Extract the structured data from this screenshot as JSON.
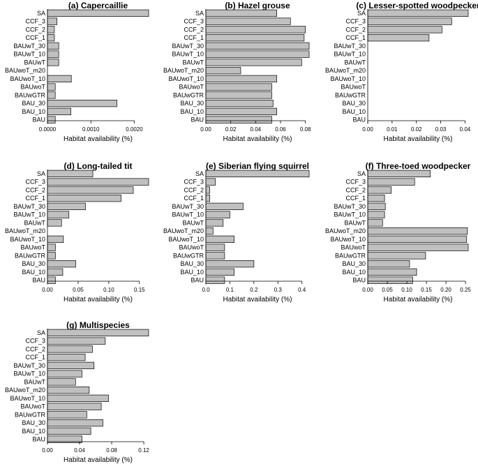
{
  "chart_data": [
    {
      "type": "bar",
      "orientation": "horizontal",
      "panel": "a",
      "title": "(a) Capercaillie",
      "xlabel": "Habitat availability (%)",
      "ylabel": "",
      "categories": [
        "SA",
        "CCF_3",
        "CCF_2",
        "CCF_1",
        "BAUwT_30",
        "BAUwT_10",
        "BAUwT",
        "BAUwoT_m20",
        "BAUwoT_10",
        "BAUwoT",
        "BAUwGTR",
        "BAU_30",
        "BAU_10",
        "BAU"
      ],
      "values": [
        0.00233,
        0.00022,
        0.00016,
        0.00016,
        0.00026,
        0.00026,
        0.00026,
        0.0,
        0.00055,
        0.00018,
        0.00018,
        0.0016,
        0.00054,
        0.00018
      ],
      "xlim": [
        0,
        0.00233
      ],
      "xticks": [
        0,
        0.001,
        0.002
      ],
      "xtick_labels": [
        "0.0000",
        "0.0010",
        "0.0020"
      ]
    },
    {
      "type": "bar",
      "orientation": "horizontal",
      "panel": "b",
      "title": "(b) Hazel grouse",
      "xlabel": "Habitat availability (%)",
      "ylabel": "",
      "categories": [
        "SA",
        "CCF_3",
        "CCF_2",
        "CCF_1",
        "BAUwT_30",
        "BAUwT_10",
        "BAUwT",
        "BAUwoT_m20",
        "BAUwoT_10",
        "BAUwoT",
        "BAUwGTR",
        "BAU_30",
        "BAU_10",
        "BAU"
      ],
      "values": [
        0.057,
        0.068,
        0.08,
        0.079,
        0.083,
        0.083,
        0.077,
        0.028,
        0.057,
        0.053,
        0.053,
        0.054,
        0.057,
        0.053
      ],
      "xlim": [
        0,
        0.083
      ],
      "xticks": [
        0,
        0.02,
        0.04,
        0.06,
        0.08
      ],
      "xtick_labels": [
        "0.00",
        "0.02",
        "0.04",
        "0.06",
        "0.08"
      ]
    },
    {
      "type": "bar",
      "orientation": "horizontal",
      "panel": "c",
      "title": "(c) Lesser-spotted woodpecker",
      "xlabel": "Habitat availability (%)",
      "ylabel": "",
      "categories": [
        "SA",
        "CCF_3",
        "CCF_2",
        "CCF_1",
        "BAUwT_30",
        "BAUwT_10",
        "BAUwT",
        "BAUwoT_m20",
        "BAUwoT_10",
        "BAUwoT",
        "BAUwGTR",
        "BAU_30",
        "BAU_10",
        "BAU"
      ],
      "values": [
        0.0413,
        0.0345,
        0.0305,
        0.0252,
        0,
        0,
        0,
        0,
        0,
        0,
        0,
        0,
        0,
        0
      ],
      "xlim": [
        0,
        0.0413
      ],
      "xticks": [
        0,
        0.01,
        0.02,
        0.03,
        0.04
      ],
      "xtick_labels": [
        "0.00",
        "0.01",
        "0.02",
        "0.03",
        "0.04"
      ]
    },
    {
      "type": "bar",
      "orientation": "horizontal",
      "panel": "d",
      "title": "(d) Long-tailed tit",
      "xlabel": "Habitat availability (%)",
      "ylabel": "",
      "categories": [
        "SA",
        "CCF_3",
        "CCF_2",
        "CCF_1",
        "BAUwT_30",
        "BAUwT_10",
        "BAUwT",
        "BAUwoT_m20",
        "BAUwoT_10",
        "BAUwoT",
        "BAUwGTR",
        "BAU_30",
        "BAU_10",
        "BAU"
      ],
      "values": [
        0.074,
        0.165,
        0.14,
        0.12,
        0.062,
        0.035,
        0.023,
        0.0,
        0.026,
        0.013,
        0.013,
        0.046,
        0.025,
        0.013
      ],
      "xlim": [
        0,
        0.165
      ],
      "xticks": [
        0,
        0.05,
        0.1,
        0.15
      ],
      "xtick_labels": [
        "0.00",
        "0.05",
        "0.10",
        "0.15"
      ]
    },
    {
      "type": "bar",
      "orientation": "horizontal",
      "panel": "e",
      "title": "(e) Siberian flying squirrel",
      "xlabel": "Habitat availability (%)",
      "ylabel": "",
      "categories": [
        "SA",
        "CCF_3",
        "CCF_2",
        "CCF_1",
        "BAUwT_30",
        "BAUwT_10",
        "BAUwT",
        "BAUwoT_m20",
        "BAUwoT_10",
        "BAUwoT",
        "BAUwGTR",
        "BAU_30",
        "BAU_10",
        "BAU"
      ],
      "values": [
        0.43,
        0.04,
        0.016,
        0.016,
        0.155,
        0.1,
        0.072,
        0.03,
        0.118,
        0.078,
        0.078,
        0.2,
        0.118,
        0.078
      ],
      "xlim": [
        0,
        0.43
      ],
      "xticks": [
        0,
        0.1,
        0.2,
        0.3,
        0.4
      ],
      "xtick_labels": [
        "0.0",
        "0.1",
        "0.2",
        "0.3",
        "0.4"
      ]
    },
    {
      "type": "bar",
      "orientation": "horizontal",
      "panel": "f",
      "title": "(f) Three-toed woodpecker",
      "xlabel": "Habitat availability (%)",
      "ylabel": "",
      "categories": [
        "SA",
        "CCF_3",
        "CCF_2",
        "CCF_1",
        "BAUwT_30",
        "BAUwT_10",
        "BAUwT",
        "BAUwoT_m20",
        "BAUwoT_10",
        "BAUwoT",
        "BAUwGTR",
        "BAU_30",
        "BAU_10",
        "BAU"
      ],
      "values": [
        0.16,
        0.12,
        0.06,
        0.043,
        0.045,
        0.043,
        0.038,
        0.255,
        0.253,
        0.257,
        0.148,
        0.107,
        0.125,
        0.115
      ],
      "xlim": [
        0,
        0.257
      ],
      "xticks": [
        0,
        0.05,
        0.1,
        0.15,
        0.2,
        0.25
      ],
      "xtick_labels": [
        "0.00",
        "0.05",
        "0.10",
        "0.15",
        "0.20",
        "0.25"
      ]
    },
    {
      "type": "bar",
      "orientation": "horizontal",
      "panel": "g",
      "title": "(g) Multispecies",
      "xlabel": "Habitat availability (%)",
      "ylabel": "",
      "categories": [
        "SA",
        "CCF_3",
        "CCF_2",
        "CCF_1",
        "BAUwT_30",
        "BAUwT_10",
        "BAUwT",
        "BAUwoT_m20",
        "BAUwoT_10",
        "BAUwoT",
        "BAUwGTR",
        "BAU_30",
        "BAU_10",
        "BAU"
      ],
      "values": [
        0.126,
        0.072,
        0.056,
        0.047,
        0.058,
        0.043,
        0.035,
        0.052,
        0.076,
        0.067,
        0.049,
        0.069,
        0.054,
        0.043
      ],
      "xlim": [
        0,
        0.126
      ],
      "xticks": [
        0,
        0.04,
        0.08,
        0.12
      ],
      "xtick_labels": [
        "0.00",
        "0.04",
        "0.08",
        "0.12"
      ]
    }
  ]
}
